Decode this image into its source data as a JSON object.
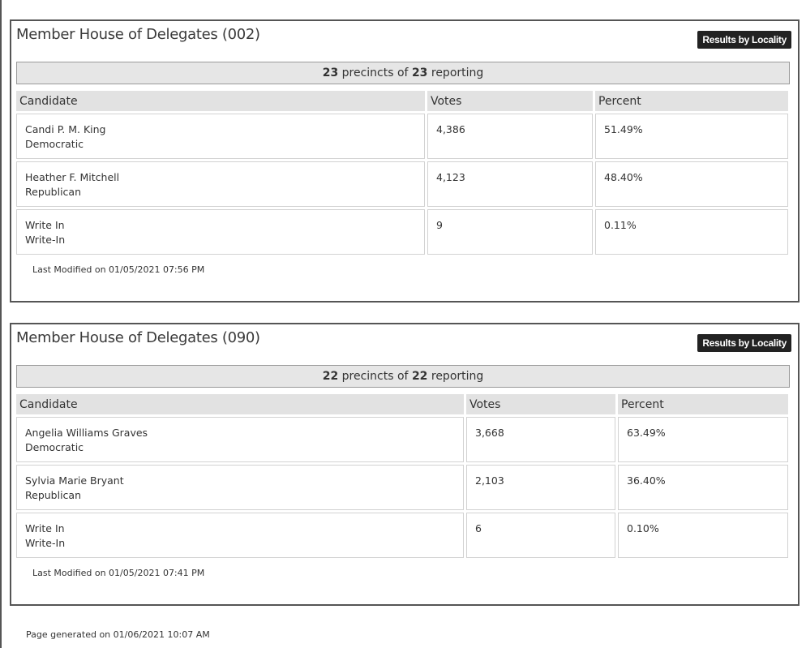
{
  "races": [
    {
      "title": "Member House of Delegates (002)",
      "button_label": "Results by Locality",
      "reporting": {
        "count": "23",
        "mid": "precincts of",
        "total": "23",
        "suffix": "reporting"
      },
      "headers": {
        "candidate": "Candidate",
        "votes": "Votes",
        "percent": "Percent"
      },
      "candidates": [
        {
          "name": "Candi P. M. King",
          "party": "Democratic",
          "votes": "4,386",
          "percent": "51.49%"
        },
        {
          "name": "Heather F. Mitchell",
          "party": "Republican",
          "votes": "4,123",
          "percent": "48.40%"
        },
        {
          "name": "Write In",
          "party": "Write-In",
          "votes": "9",
          "percent": "0.11%"
        }
      ],
      "last_modified": "Last Modified on 01/05/2021 07:56 PM"
    },
    {
      "title": "Member House of Delegates (090)",
      "button_label": "Results by Locality",
      "reporting": {
        "count": "22",
        "mid": "precincts of",
        "total": "22",
        "suffix": "reporting"
      },
      "headers": {
        "candidate": "Candidate",
        "votes": "Votes",
        "percent": "Percent"
      },
      "candidates": [
        {
          "name": "Angelia Williams Graves",
          "party": "Democratic",
          "votes": "3,668",
          "percent": "63.49%"
        },
        {
          "name": "Sylvia Marie Bryant",
          "party": "Republican",
          "votes": "2,103",
          "percent": "36.40%"
        },
        {
          "name": "Write In",
          "party": "Write-In",
          "votes": "6",
          "percent": "0.10%"
        }
      ],
      "last_modified": "Last Modified on 01/05/2021 07:41 PM"
    }
  ],
  "page_generated": "Page generated on 01/06/2021 10:07 AM"
}
